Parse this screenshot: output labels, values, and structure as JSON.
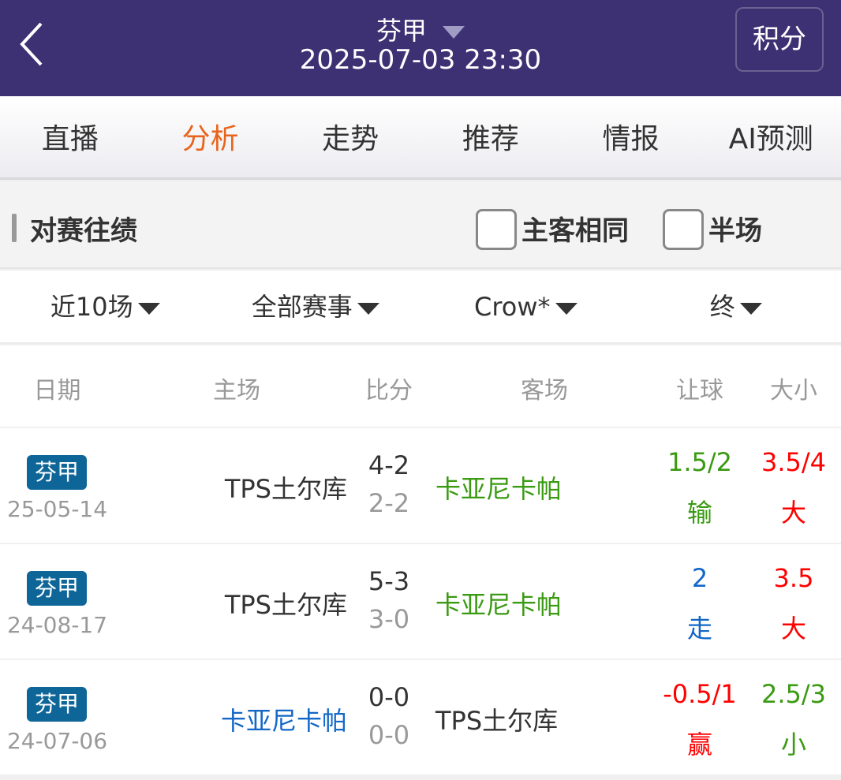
{
  "header": {
    "title": "芬甲",
    "datetime": "2025-07-03 23:30",
    "points_button": "积分"
  },
  "tabs": [
    {
      "label": "直播",
      "active": false
    },
    {
      "label": "分析",
      "active": true
    },
    {
      "label": "走势",
      "active": false
    },
    {
      "label": "推荐",
      "active": false
    },
    {
      "label": "情报",
      "active": false
    },
    {
      "label": "AI预测",
      "active": false
    }
  ],
  "section": {
    "title": "对赛往绩",
    "checkbox_same": "主客相同",
    "checkbox_half": "半场"
  },
  "filters": [
    "近10场",
    "全部赛事",
    "Crow*",
    "终"
  ],
  "columns": {
    "date": "日期",
    "home": "主场",
    "score": "比分",
    "away": "客场",
    "handicap": "让球",
    "total": "大小"
  },
  "rows": [
    {
      "league": "芬甲",
      "date": "25-05-14",
      "home": "TPS土尔库",
      "home_color": "k",
      "score": "4-2",
      "half": "2-2",
      "away": "卡亚尼卡帕",
      "away_color": "g",
      "handicap": "1.5/2",
      "handicap_result": "输",
      "h_color": "g",
      "total": "3.5/4",
      "total_result": "大",
      "t_color": "r"
    },
    {
      "league": "芬甲",
      "date": "24-08-17",
      "home": "TPS土尔库",
      "home_color": "k",
      "score": "5-3",
      "half": "3-0",
      "away": "卡亚尼卡帕",
      "away_color": "g",
      "handicap": "2",
      "handicap_result": "走",
      "h_color": "b",
      "total": "3.5",
      "total_result": "大",
      "t_color": "r"
    },
    {
      "league": "芬甲",
      "date": "24-07-06",
      "home": "卡亚尼卡帕",
      "home_color": "b",
      "score": "0-0",
      "half": "0-0",
      "away": "TPS土尔库",
      "away_color": "k",
      "handicap": "-0.5/1",
      "handicap_result": "赢",
      "h_color": "r",
      "total": "2.5/3",
      "total_result": "小",
      "t_color": "g"
    }
  ],
  "colors": {
    "header_bg": "#3d3173",
    "active_tab": "#e8641c",
    "badge": "#0e6597",
    "green": "#3a9a12",
    "red": "#ff0000",
    "blue": "#1267c7"
  }
}
